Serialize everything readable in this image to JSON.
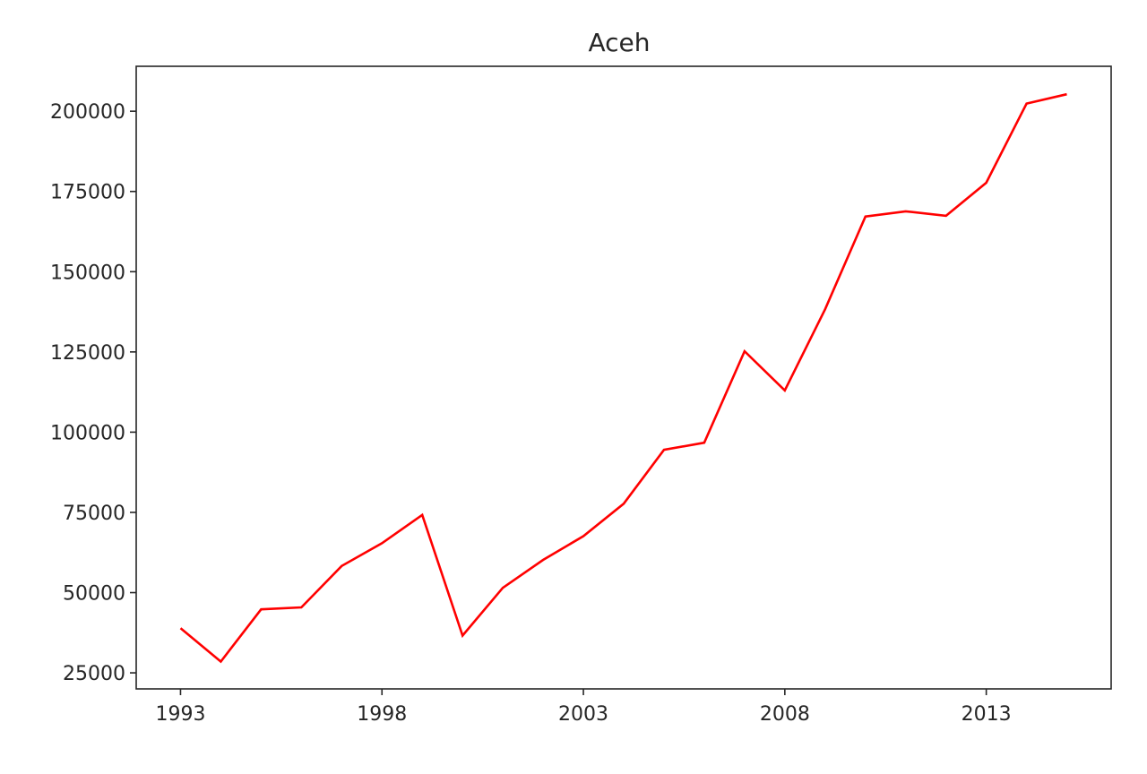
{
  "chart_data": {
    "type": "line",
    "title": "Aceh",
    "xlabel": "",
    "ylabel": "",
    "xlim": [
      1991.9,
      2016.1
    ],
    "ylim": [
      20000,
      214000
    ],
    "x_ticks": [
      1993,
      1998,
      2003,
      2008,
      2013
    ],
    "x_tick_labels": [
      "1993",
      "1998",
      "2003",
      "2008",
      "2013"
    ],
    "y_ticks": [
      25000,
      50000,
      75000,
      100000,
      125000,
      150000,
      175000,
      200000
    ],
    "y_tick_labels": [
      "25000",
      "50000",
      "75000",
      "100000",
      "125000",
      "150000",
      "175000",
      "200000"
    ],
    "grid": false,
    "series": [
      {
        "color": "#ff0000",
        "x": [
          1993,
          1994,
          1995,
          1996,
          1997,
          1998,
          1999,
          2000,
          2001,
          2002,
          2003,
          2004,
          2005,
          2006,
          2007,
          2008,
          2009,
          2010,
          2011,
          2012,
          2013,
          2014,
          2015
        ],
        "y": [
          38900,
          28500,
          44800,
          45400,
          58300,
          65400,
          74200,
          36600,
          51500,
          60200,
          67600,
          77700,
          94500,
          96700,
          125200,
          113000,
          138300,
          167200,
          168800,
          167400,
          177700,
          202400,
          205300
        ]
      }
    ]
  }
}
